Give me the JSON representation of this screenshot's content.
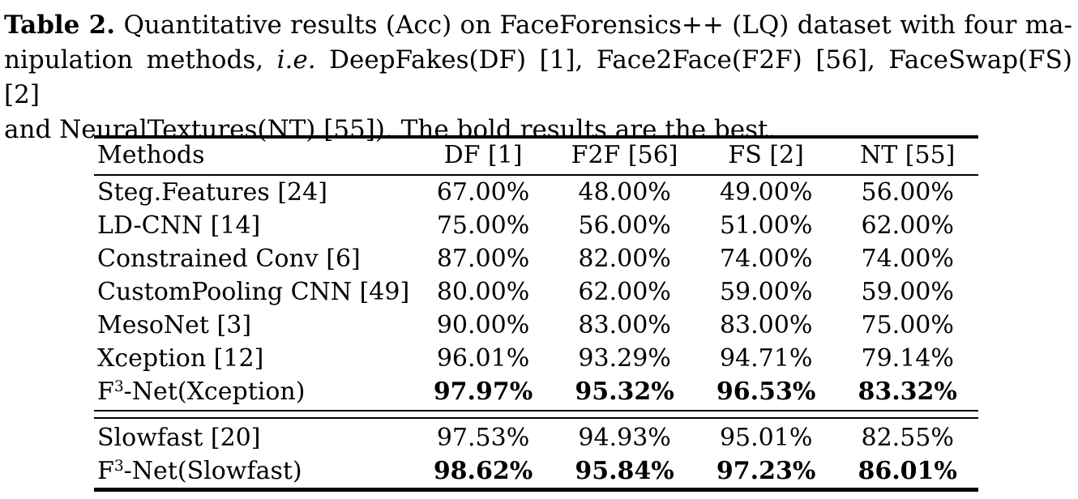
{
  "caption": {
    "label": "Table 2.",
    "line1_rest": "Quantitative results (Acc) on FaceForensics++ (LQ) dataset with four ma-",
    "line2_pre": "nipulation methods,",
    "line2_italic": "i.e.",
    "line2_post": "DeepFakes(DF) [1], Face2Face(F2F) [56], FaceSwap(FS) [2]",
    "line3": "and NeuralTextures(NT) [55]). The bold results are the best."
  },
  "table": {
    "columns": [
      "Methods",
      "DF [1]",
      "F2F [56]",
      "FS [2]",
      "NT [55]"
    ],
    "rows": [
      {
        "method_pre": "Steg.Features [24]",
        "method_sup": "",
        "method_post": "",
        "values": [
          "67.00%",
          "48.00%",
          "49.00%",
          "56.00%"
        ],
        "bold": false
      },
      {
        "method_pre": "LD-CNN [14]",
        "method_sup": "",
        "method_post": "",
        "values": [
          "75.00%",
          "56.00%",
          "51.00%",
          "62.00%"
        ],
        "bold": false
      },
      {
        "method_pre": "Constrained Conv [6]",
        "method_sup": "",
        "method_post": "",
        "values": [
          "87.00%",
          "82.00%",
          "74.00%",
          "74.00%"
        ],
        "bold": false
      },
      {
        "method_pre": "CustomPooling CNN [49]",
        "method_sup": "",
        "method_post": "",
        "values": [
          "80.00%",
          "62.00%",
          "59.00%",
          "59.00%"
        ],
        "bold": false
      },
      {
        "method_pre": "MesoNet [3]",
        "method_sup": "",
        "method_post": "",
        "values": [
          "90.00%",
          "83.00%",
          "83.00%",
          "75.00%"
        ],
        "bold": false
      },
      {
        "method_pre": "Xception [12]",
        "method_sup": "",
        "method_post": "",
        "values": [
          "96.01%",
          "93.29%",
          "94.71%",
          "79.14%"
        ],
        "bold": false
      },
      {
        "method_pre": "F",
        "method_sup": "3",
        "method_post": "-Net(Xception)",
        "values": [
          "97.97%",
          "95.32%",
          "96.53%",
          "83.32%"
        ],
        "bold": true
      },
      {
        "method_pre": "Slowfast [20]",
        "method_sup": "",
        "method_post": "",
        "values": [
          "97.53%",
          "94.93%",
          "95.01%",
          "82.55%"
        ],
        "bold": false
      },
      {
        "method_pre": "F",
        "method_sup": "3",
        "method_post": "-Net(Slowfast)",
        "values": [
          "98.62%",
          "95.84%",
          "97.23%",
          "86.01%"
        ],
        "bold": true
      }
    ],
    "colors": {
      "text": "#000000",
      "background": "#ffffff",
      "rule": "#000000"
    }
  }
}
